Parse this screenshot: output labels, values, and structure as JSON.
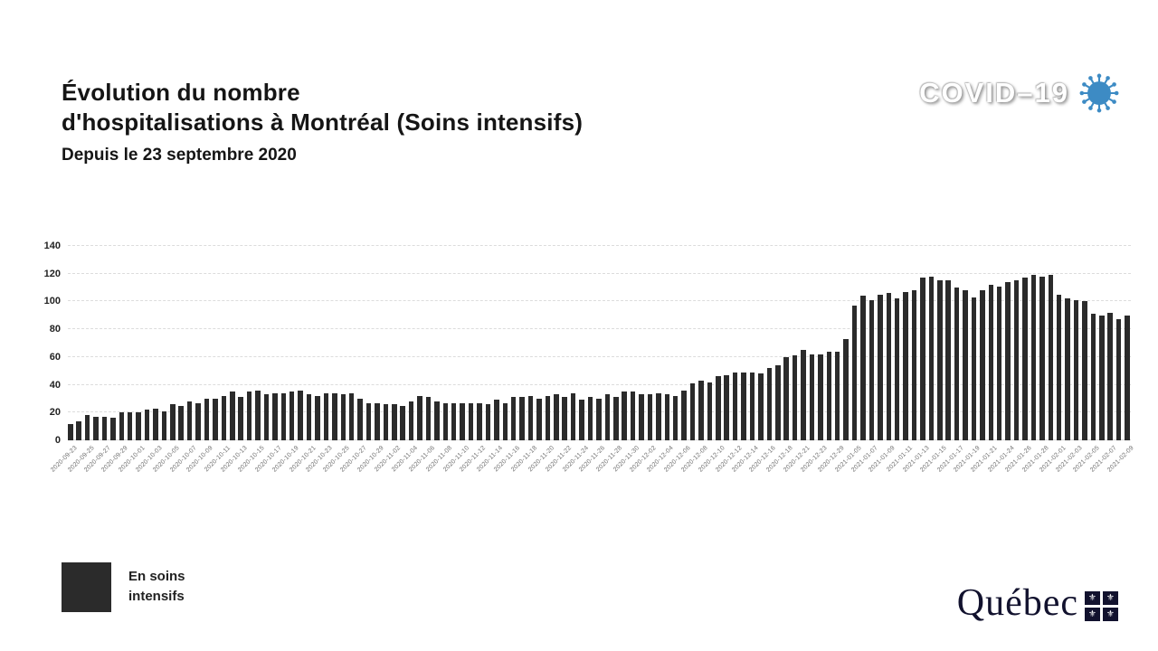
{
  "header": {
    "title_lines": [
      "Évolution du nombre",
      "d'hospitalisations à Montréal (Soins intensifs)"
    ],
    "subtitle": "Depuis le 23 septembre 2020",
    "badge_label": "COVID–19",
    "badge_text_color": "#ffffff",
    "virus_icon_color": "#3d8bc4"
  },
  "legend": {
    "label": "En soins intensifs",
    "swatch_color": "#2b2b2b"
  },
  "footer": {
    "wordmark": "Québec",
    "flag_color": "#12122e",
    "fleur_de_lis": "⚜"
  },
  "chart_data": {
    "type": "bar",
    "title": "Évolution du nombre d'hospitalisations à Montréal (Soins intensifs)",
    "subtitle": "Depuis le 23 septembre 2020",
    "bar_color": "#2b2b2b",
    "grid": "dashed-horizontal",
    "ylim": [
      0,
      140
    ],
    "yticks": [
      0,
      20,
      40,
      60,
      80,
      100,
      120,
      140
    ],
    "xlabel": "",
    "ylabel": "",
    "label_every": 2,
    "categories": [
      "2020-09-23",
      "2020-09-25",
      "2020-09-27",
      "2020-09-29",
      "2020-10-01",
      "2020-10-03",
      "2020-10-05",
      "2020-10-07",
      "2020-10-09",
      "2020-10-11",
      "2020-10-13",
      "2020-10-15",
      "2020-10-17",
      "2020-10-19",
      "2020-10-21",
      "2020-10-23",
      "2020-10-25",
      "2020-10-27",
      "2020-10-29",
      "2020-11-02",
      "2020-11-04",
      "2020-11-06",
      "2020-11-08",
      "2020-11-10",
      "2020-11-12",
      "2020-11-14",
      "2020-11-16",
      "2020-11-18",
      "2020-11-20",
      "2020-11-22",
      "2020-11-24",
      "2020-11-26",
      "2020-11-28",
      "2020-11-30",
      "2020-12-02",
      "2020-12-04",
      "2020-12-06",
      "2020-12-08",
      "2020-12-10",
      "2020-12-12",
      "2020-12-14",
      "2020-12-16",
      "2020-12-18",
      "2020-12-21",
      "2020-12-23",
      "2020-12-29",
      "2021-01-05",
      "2021-01-07",
      "2021-01-09",
      "2021-01-11",
      "2021-01-13",
      "2021-01-15",
      "2021-01-17",
      "2021-01-19",
      "2021-01-21",
      "2021-01-24",
      "2021-01-26",
      "2021-01-28",
      "2021-02-01",
      "2021-02-03",
      "2021-02-05",
      "2021-02-07",
      "2021-02-09"
    ],
    "values": [
      12,
      14,
      18,
      17,
      17,
      16,
      20,
      20,
      20,
      22,
      23,
      21,
      26,
      25,
      28,
      27,
      30,
      30,
      32,
      35,
      31,
      35,
      36,
      33,
      34,
      34,
      35,
      36,
      33,
      32,
      34,
      34,
      33,
      34,
      30,
      27,
      27,
      26,
      26,
      25,
      28,
      32,
      31,
      28,
      27,
      27,
      27,
      27,
      27,
      26,
      29,
      27,
      31,
      31,
      32,
      30,
      32,
      33,
      31,
      34,
      29,
      31,
      30,
      33,
      31,
      35,
      35,
      33,
      33,
      34,
      33,
      32,
      36,
      41,
      43,
      42,
      46,
      47,
      49,
      49,
      49,
      48,
      52,
      54,
      60,
      61,
      65,
      62,
      62,
      64,
      64,
      73,
      97,
      104,
      101,
      105,
      106,
      102,
      107,
      108,
      117,
      118,
      115,
      115,
      110,
      108,
      103,
      108,
      112,
      111,
      114,
      115,
      117,
      119,
      118,
      119,
      105,
      102,
      101,
      100,
      91,
      90,
      92,
      87,
      90
    ]
  }
}
